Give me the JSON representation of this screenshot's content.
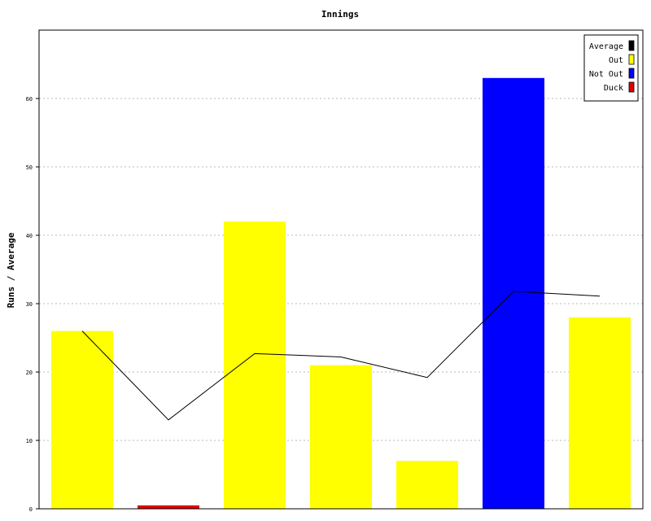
{
  "chart_data": {
    "type": "bar",
    "title": "Innings",
    "xlabel": "",
    "ylabel": "Runs / Average",
    "ylim": [
      0,
      70
    ],
    "yticks": [
      0,
      10,
      20,
      30,
      40,
      50,
      60
    ],
    "grid": true,
    "legend_position": "top-right",
    "bars": [
      {
        "value": 26,
        "category": "Out"
      },
      {
        "value": 0.5,
        "category": "Duck"
      },
      {
        "value": 42,
        "category": "Out"
      },
      {
        "value": 21,
        "category": "Out"
      },
      {
        "value": 7,
        "category": "Out"
      },
      {
        "value": 63,
        "category": "Not Out"
      },
      {
        "value": 28,
        "category": "Out"
      }
    ],
    "average_line": {
      "name": "Average",
      "values": [
        26,
        13,
        22.7,
        22.2,
        19.2,
        31.8,
        31.1
      ]
    },
    "legend": [
      {
        "label": "Average",
        "color": "#000000"
      },
      {
        "label": "Out",
        "color": "#ffff00"
      },
      {
        "label": "Not Out",
        "color": "#0000ff"
      },
      {
        "label": "Duck",
        "color": "#e00000"
      }
    ],
    "colors": {
      "Out": "#ffff00",
      "Not Out": "#0000ff",
      "Duck": "#e00000",
      "Average": "#000000"
    }
  }
}
